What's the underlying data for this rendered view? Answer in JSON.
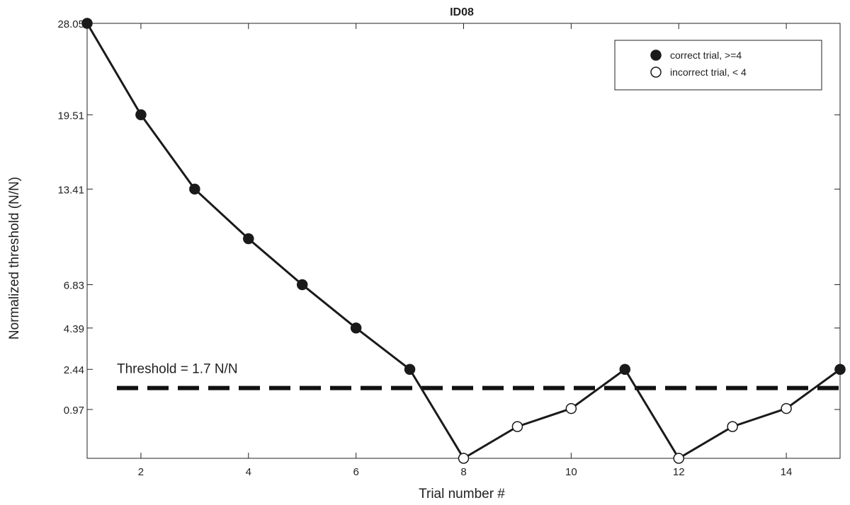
{
  "chart_data": {
    "type": "line",
    "title": "ID08",
    "xlabel": "Trial number #",
    "ylabel": "Normalized threshold (N/N)",
    "xlim": [
      1,
      15
    ],
    "ylim": [
      0,
      28.05
    ],
    "xticks": [
      2,
      4,
      6,
      8,
      10,
      12,
      14
    ],
    "yticks": [
      0.97,
      2.44,
      4.39,
      6.83,
      13.41,
      19.51,
      28.05
    ],
    "ytick_labels": [
      "0.97",
      "2.44",
      "4.39",
      "6.83",
      "13.41",
      "19.51",
      "28.05"
    ],
    "series": [
      {
        "x": [
          1,
          2,
          3,
          4,
          5,
          6,
          7,
          8,
          9,
          10,
          11,
          12,
          13,
          14,
          15
        ],
        "y": [
          28.05,
          19.51,
          13.41,
          9.8,
          6.83,
          4.39,
          2.44,
          0.0,
          0.5,
          1.0,
          2.44,
          0.0,
          0.5,
          1.0,
          2.44
        ],
        "correct": [
          true,
          true,
          true,
          true,
          true,
          true,
          true,
          false,
          false,
          false,
          true,
          false,
          false,
          false,
          true
        ]
      }
    ],
    "threshold": {
      "value": 1.7,
      "label": "Threshold = 1.7 N/N"
    },
    "legend": {
      "position": "top-right",
      "entries": [
        {
          "label": "correct trial, >=4",
          "marker": "filled"
        },
        {
          "label": "incorrect trial, < 4",
          "marker": "open"
        }
      ]
    },
    "colors": {
      "line": "#1a1a1a",
      "marker_filled": "#1a1a1a",
      "marker_open": "#ffffff"
    }
  }
}
